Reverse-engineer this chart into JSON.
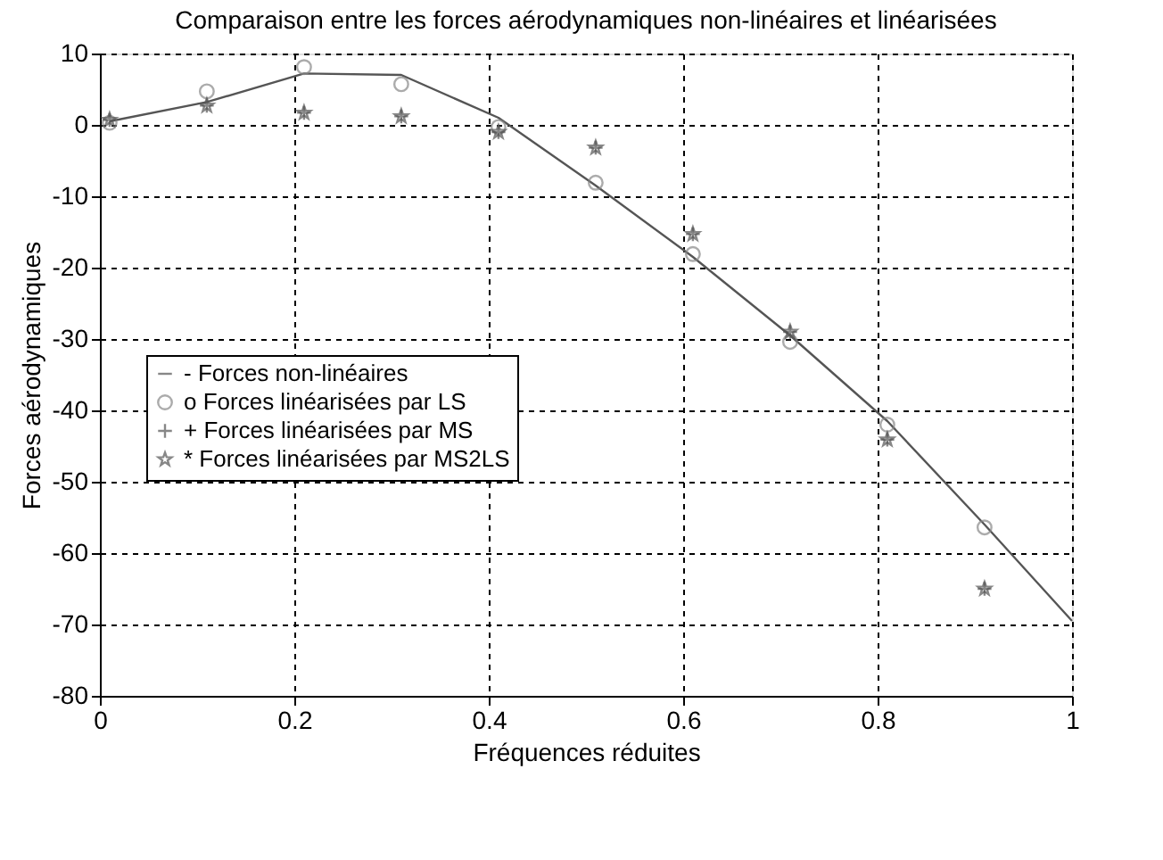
{
  "chart_data": {
    "type": "line",
    "title": "Comparaison entre les forces aérodynamiques non-linéaires et linéarisées",
    "xlabel": "Fréquences réduites",
    "ylabel": "Forces aérodynamiques",
    "xlim": [
      0,
      1
    ],
    "xticks": [
      0,
      0.2,
      0.4,
      0.6,
      0.8,
      1
    ],
    "ylim": [
      -80,
      10
    ],
    "yticks": [
      -80,
      -70,
      -60,
      -50,
      -40,
      -30,
      -20,
      -10,
      0,
      10
    ],
    "grid": true,
    "legend": "left",
    "line_style": "solid",
    "series": [
      {
        "name": "- Forces non-linéaires",
        "type": "line",
        "marker": "none",
        "color": "#555555",
        "x": [
          0.01,
          0.11,
          0.21,
          0.31,
          0.41,
          0.51,
          0.61,
          0.71,
          0.81,
          0.91,
          1.0
        ],
        "values": [
          0.5,
          3.2,
          7.2,
          7.0,
          1.0,
          -8.5,
          -18.5,
          -29.5,
          -41.5,
          -56,
          -69.5
        ]
      },
      {
        "name": "o Forces linéarisées par LS",
        "type": "scatter",
        "marker": "circle",
        "color": "#888888",
        "x": [
          0.01,
          0.11,
          0.21,
          0.31,
          0.41,
          0.51,
          0.61,
          0.71,
          0.81,
          0.91
        ],
        "values": [
          0.3,
          4.7,
          8.1,
          5.7,
          -0.3,
          -8.1,
          -18.1,
          -30.4,
          -42,
          -56.4
        ]
      },
      {
        "name": "+ Forces linéarisées par MS",
        "type": "scatter",
        "marker": "cross",
        "color": "#555555",
        "x": [
          0.01,
          0.11,
          0.21,
          0.31,
          0.41,
          0.51,
          0.61,
          0.71,
          0.81,
          0.91
        ],
        "values": [
          0.7,
          2.7,
          1.7,
          1.2,
          -1.0,
          -3.2,
          -15.3,
          -29,
          -44.1,
          -65
        ]
      },
      {
        "name": "* Forces linéarisées par MS2LS",
        "type": "scatter",
        "marker": "star",
        "color": "#555555",
        "x": [
          0.01,
          0.11,
          0.21,
          0.31,
          0.41,
          0.51,
          0.61,
          0.71,
          0.81,
          0.91
        ],
        "values": [
          0.7,
          2.7,
          1.7,
          1.2,
          -1.0,
          -3.2,
          -15.3,
          -29,
          -44.1,
          -65
        ]
      }
    ]
  }
}
